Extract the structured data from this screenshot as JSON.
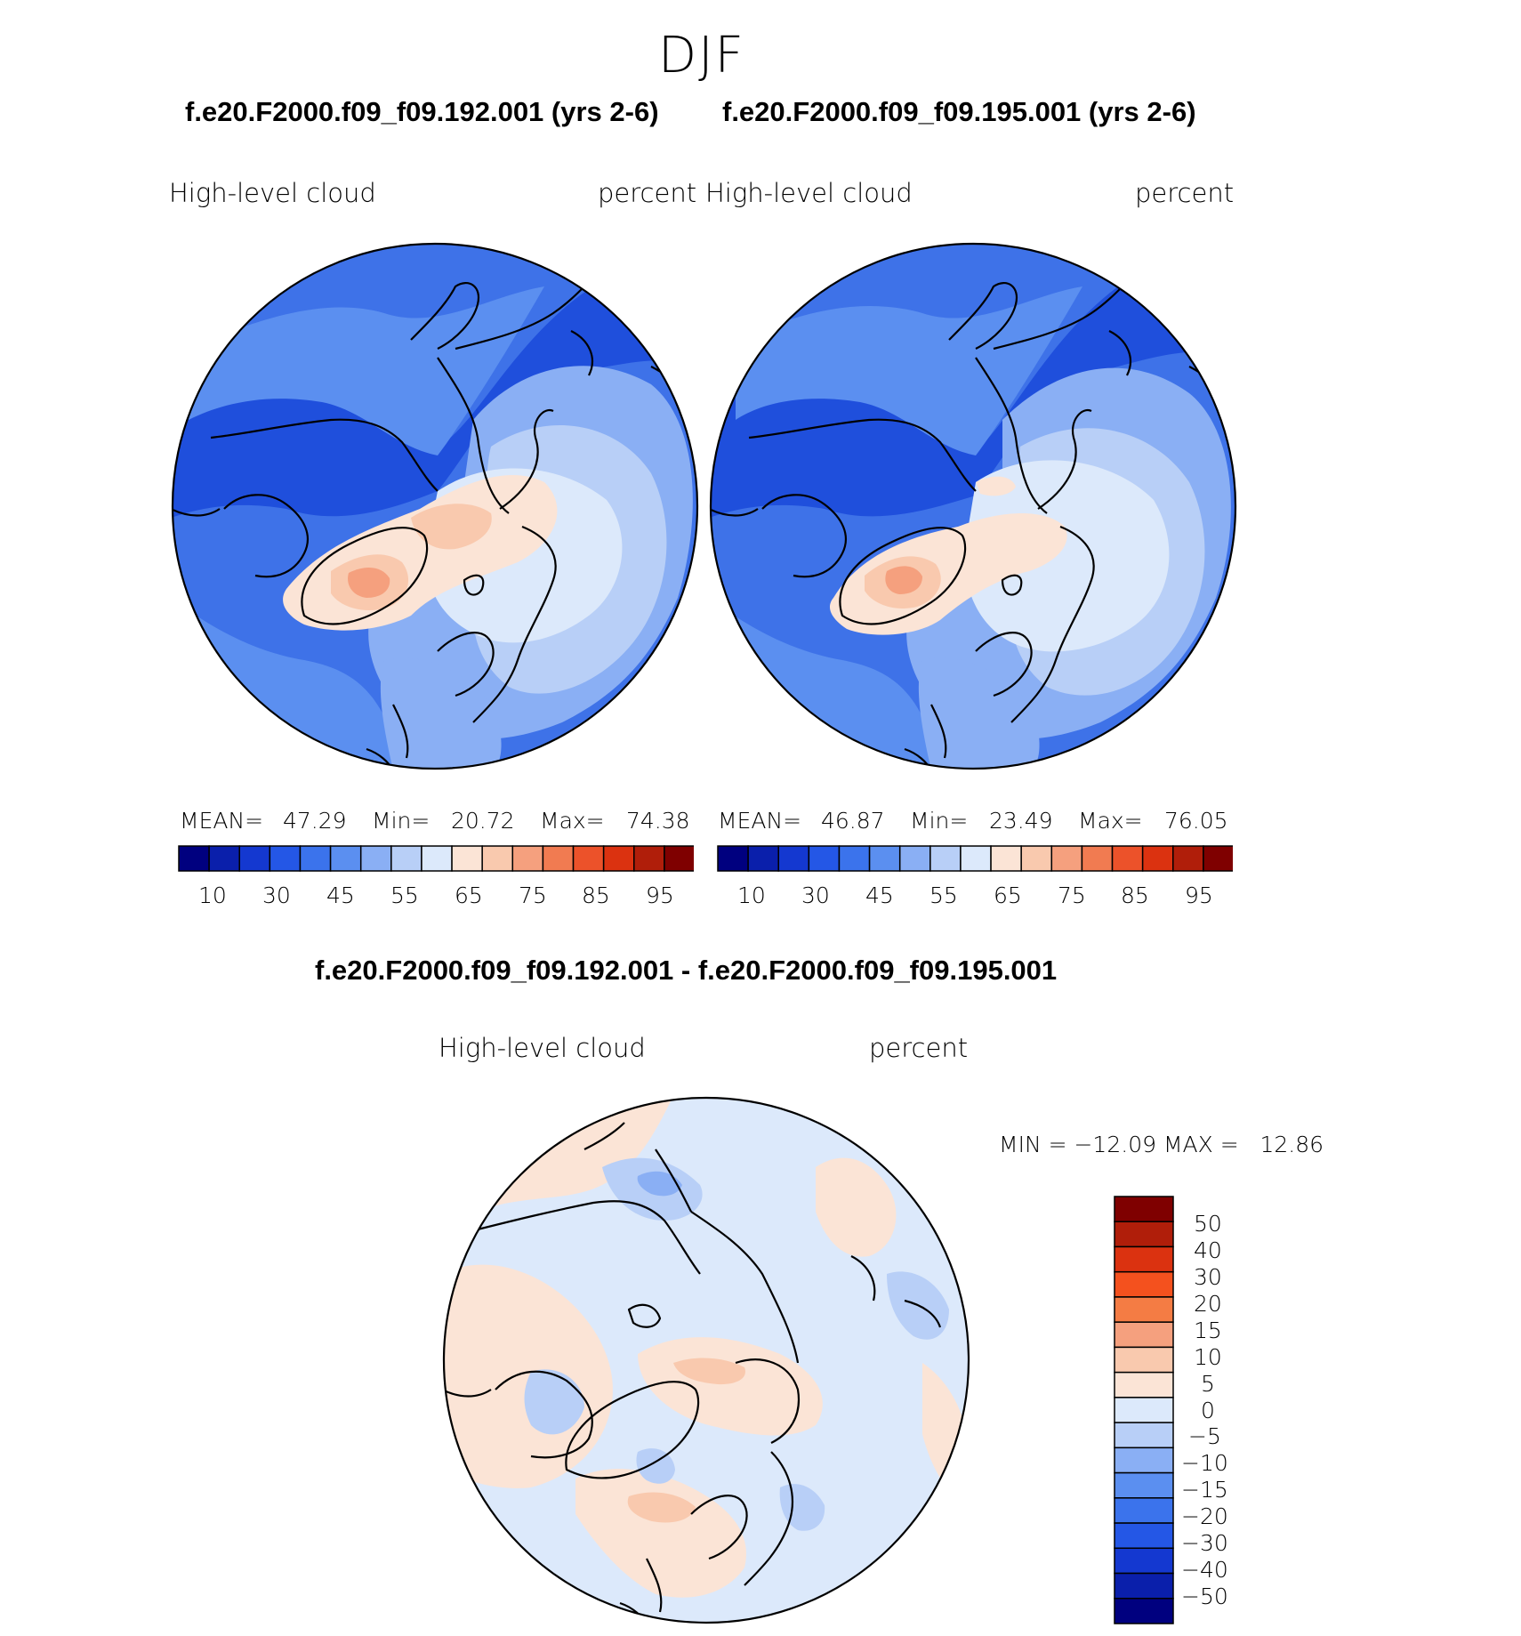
{
  "main_title": "DJF",
  "panels": [
    {
      "case_title": "f.e20.F2000.f09_f09.192.001 (yrs 2-6)",
      "variable": "High-level cloud",
      "units": "percent",
      "stats": {
        "mean_label": "MEAN=",
        "mean": "47.29",
        "min_label": "Min=",
        "min": "20.72",
        "max_label": "Max=",
        "max": "74.38"
      }
    },
    {
      "case_title": "f.e20.F2000.f09_f09.195.001 (yrs 2-6)",
      "variable": "High-level cloud",
      "units": "percent",
      "stats": {
        "mean_label": "MEAN=",
        "mean": "46.87",
        "min_label": "Min=",
        "min": "23.49",
        "max_label": "Max=",
        "max": "76.05"
      }
    }
  ],
  "colorbar_abs": {
    "colors": [
      "#00007f",
      "#0a1fab",
      "#1438d0",
      "#2457e6",
      "#3b73ec",
      "#5b8ff0",
      "#8aaff4",
      "#b8cff7",
      "#dce9fb",
      "#fbe4d6",
      "#f9c9ae",
      "#f5a07e",
      "#f17b51",
      "#ec522a",
      "#db3210",
      "#b01e0a",
      "#7f0000"
    ],
    "ticks": [
      "10",
      "30",
      "45",
      "55",
      "65",
      "75",
      "85",
      "95"
    ]
  },
  "diff": {
    "title": "f.e20.F2000.f09_f09.192.001 - f.e20.F2000.f09_f09.195.001",
    "variable": "High-level cloud",
    "units": "percent",
    "minmax": "MIN = −12.09 MAX =   12.86",
    "colorbar": {
      "colors": [
        "#7f0000",
        "#b01e0a",
        "#db3210",
        "#f4511e",
        "#f47c44",
        "#f5a07e",
        "#f9c9ae",
        "#fbe4d6",
        "#dce9fb",
        "#b8cff7",
        "#8aaff4",
        "#5b8ff0",
        "#3b73ec",
        "#2457e6",
        "#1438d0",
        "#0a1fab",
        "#00007f"
      ],
      "labels": [
        "50",
        "40",
        "30",
        "20",
        "15",
        "10",
        "5",
        "0",
        "−5",
        "−10",
        "−15",
        "−20",
        "−30",
        "−40",
        "−50"
      ]
    }
  },
  "map_fields": {
    "ocean_base": "#3e72e8",
    "deep": "#1f4fdc",
    "mid": "#5b8ff0",
    "light": "#8aaff4",
    "pale": "#b8cff7",
    "paler": "#dce9fb",
    "warm1": "#fbe4d6",
    "warm2": "#f9c9ae",
    "warm3": "#f5a07e",
    "warm4": "#f17b51",
    "diff_base": "#dce9fb",
    "diff_warm": "#fbe4d6",
    "diff_warm2": "#f9c9ae",
    "diff_cool": "#b8cff7",
    "diff_cool2": "#8aaff4"
  }
}
